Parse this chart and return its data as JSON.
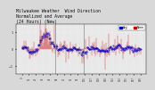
{
  "title_line1": "Milwaukee Weather  Wind Direction",
  "title_line2": "Normalized and Average",
  "title_line3": "(24 Hours) (New)",
  "bg_color": "#d8d8d8",
  "plot_bg_color": "#e8e8e8",
  "bar_color": "#cc0000",
  "dot_color": "#0000cc",
  "ylim": [
    -1.5,
    1.5
  ],
  "yticks": [
    -1,
    0,
    1
  ],
  "n_points": 200,
  "vline_positions": [
    0.28,
    0.52
  ],
  "title_fontsize": 3.5,
  "legend_blue_label": "Avg",
  "legend_red_label": "Norm",
  "grid_color": "#ffffff"
}
